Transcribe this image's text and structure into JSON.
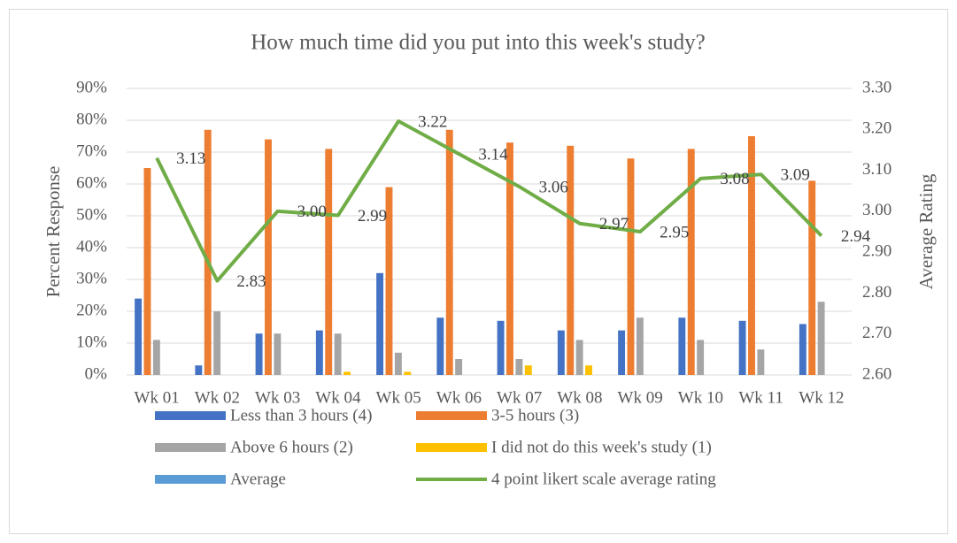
{
  "chart_data": {
    "type": "bar",
    "title": "How much time did you put into this week's study?",
    "y_label": "Percent Response",
    "y2_label": "Average Rating",
    "categories": [
      "Wk 01",
      "Wk 02",
      "Wk 03",
      "Wk 04",
      "Wk 05",
      "Wk 06",
      "Wk 07",
      "Wk 08",
      "Wk 09",
      "Wk 10",
      "Wk 11",
      "Wk 12"
    ],
    "series": [
      {
        "name": "Less than 3 hours (4)",
        "color": "#4472c4",
        "type": "bar",
        "values": [
          24,
          3,
          13,
          14,
          32,
          18,
          17,
          14,
          14,
          18,
          17,
          16
        ]
      },
      {
        "name": "3-5 hours (3)",
        "color": "#ed7d31",
        "type": "bar",
        "values": [
          65,
          77,
          74,
          71,
          59,
          77,
          73,
          72,
          68,
          71,
          75,
          61
        ]
      },
      {
        "name": "Above 6 hours (2)",
        "color": "#a5a5a5",
        "type": "bar",
        "values": [
          11,
          20,
          13,
          13,
          7,
          5,
          5,
          11,
          18,
          11,
          8,
          23
        ]
      },
      {
        "name": "I did not do this week's study (1)",
        "color": "#ffc000",
        "type": "bar",
        "values": [
          0,
          0,
          0,
          1,
          1,
          0,
          3,
          3,
          0,
          0,
          0,
          0
        ]
      },
      {
        "name": "Average",
        "color": "#5b9bd5",
        "type": "bar",
        "values": [
          null,
          null,
          null,
          null,
          null,
          null,
          null,
          null,
          null,
          null,
          null,
          null
        ]
      },
      {
        "name": "4 point likert scale average rating",
        "color": "#70ad47",
        "type": "line",
        "axis": "y2",
        "values": [
          3.13,
          2.83,
          3.0,
          2.99,
          3.22,
          3.14,
          3.06,
          2.97,
          2.95,
          3.08,
          3.09,
          2.94
        ],
        "value_labels": [
          "3.13",
          "2.83",
          "3.00",
          "2.99",
          "3.22",
          "3.14",
          "3.06",
          "2.97",
          "2.95",
          "3.08",
          "3.09",
          "2.94"
        ]
      }
    ],
    "ylim": [
      0,
      90
    ],
    "yticks": [
      {
        "value": 0,
        "label": "0%"
      },
      {
        "value": 10,
        "label": "10%"
      },
      {
        "value": 20,
        "label": "20%"
      },
      {
        "value": 30,
        "label": "30%"
      },
      {
        "value": 40,
        "label": "40%"
      },
      {
        "value": 50,
        "label": "50%"
      },
      {
        "value": 60,
        "label": "60%"
      },
      {
        "value": 70,
        "label": "70%"
      },
      {
        "value": 80,
        "label": "80%"
      },
      {
        "value": 90,
        "label": "90%"
      }
    ],
    "y2lim": [
      2.6,
      3.3
    ],
    "y2ticks": [
      {
        "value": 2.6,
        "label": "2.60"
      },
      {
        "value": 2.7,
        "label": "2.70"
      },
      {
        "value": 2.8,
        "label": "2.80"
      },
      {
        "value": 2.9,
        "label": "2.90"
      },
      {
        "value": 3.0,
        "label": "3.00"
      },
      {
        "value": 3.1,
        "label": "3.10"
      },
      {
        "value": 3.2,
        "label": "3.20"
      },
      {
        "value": 3.3,
        "label": "3.30"
      }
    ],
    "grid": true,
    "legend": "bottom"
  }
}
